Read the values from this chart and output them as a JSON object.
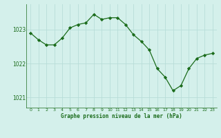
{
  "hours": [
    0,
    1,
    2,
    3,
    4,
    5,
    6,
    7,
    8,
    9,
    10,
    11,
    12,
    13,
    14,
    15,
    16,
    17,
    18,
    19,
    20,
    21,
    22,
    23
  ],
  "pressure": [
    1022.9,
    1022.7,
    1022.55,
    1022.55,
    1022.75,
    1023.05,
    1023.15,
    1023.2,
    1023.45,
    1023.3,
    1023.35,
    1023.35,
    1023.15,
    1022.85,
    1022.65,
    1022.4,
    1021.85,
    1021.6,
    1021.2,
    1021.35,
    1021.85,
    1022.15,
    1022.25,
    1022.3
  ],
  "line_color": "#1a6b1a",
  "marker_color": "#1a6b1a",
  "bg_color": "#d4f0eb",
  "grid_color": "#b8ddd8",
  "xlabel": "Graphe pression niveau de la mer (hPa)",
  "xlabel_color": "#1a6b1a",
  "tick_color": "#1a6b1a",
  "yticks": [
    1021,
    1022,
    1023
  ],
  "ylim": [
    1020.7,
    1023.75
  ],
  "xlim": [
    -0.5,
    23.5
  ],
  "xtick_labels": [
    "0",
    "1",
    "2",
    "3",
    "4",
    "5",
    "6",
    "7",
    "8",
    "9",
    "10",
    "11",
    "12",
    "13",
    "14",
    "15",
    "16",
    "17",
    "18",
    "19",
    "20",
    "21",
    "22",
    "23"
  ]
}
